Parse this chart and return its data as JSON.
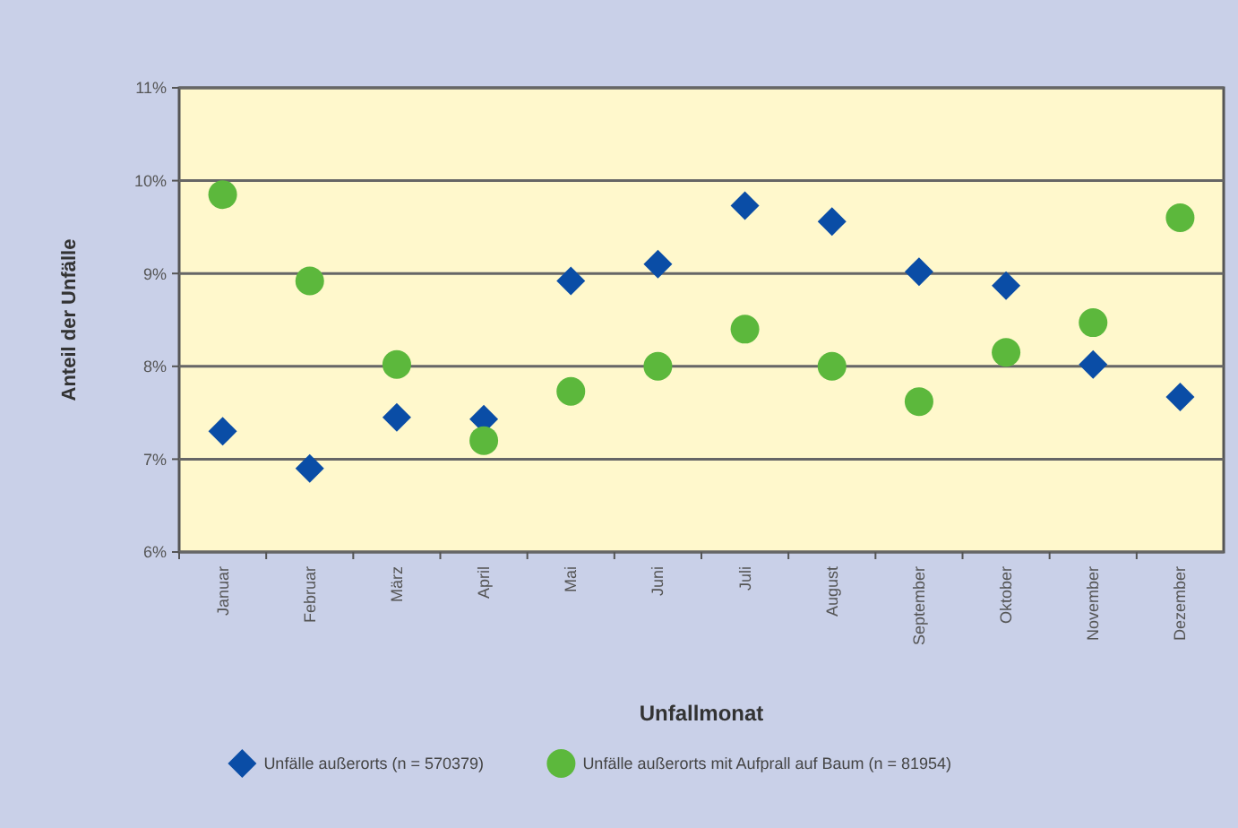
{
  "chart_data": {
    "type": "scatter",
    "xlabel": "Unfallmonat",
    "ylabel": "Anteil der Unfälle",
    "categories": [
      "Januar",
      "Februar",
      "März",
      "April",
      "Mai",
      "Juni",
      "Juli",
      "August",
      "September",
      "Oktober",
      "November",
      "Dezember"
    ],
    "series": [
      {
        "name": "Unfälle außerorts (n = 570379)",
        "color": "#0a4da6",
        "marker": "diamond",
        "values": [
          7.3,
          6.9,
          7.45,
          7.43,
          8.92,
          9.1,
          9.73,
          9.56,
          9.02,
          8.87,
          8.02,
          7.67
        ]
      },
      {
        "name": "Unfälle außerorts mit Aufprall auf Baum (n = 81954)",
        "color": "#5cb83c",
        "marker": "circle",
        "values": [
          9.85,
          8.92,
          8.02,
          7.2,
          7.73,
          8.0,
          8.4,
          8.0,
          7.62,
          8.15,
          8.47,
          9.6
        ]
      }
    ],
    "ylim": [
      6,
      11
    ],
    "yticks": [
      {
        "value": 6,
        "label": "6%"
      },
      {
        "value": 7,
        "label": "7%"
      },
      {
        "value": 8,
        "label": "8%"
      },
      {
        "value": 9,
        "label": "9%"
      },
      {
        "value": 10,
        "label": "10%"
      },
      {
        "value": 11,
        "label": "11%"
      }
    ],
    "grid": "y",
    "legend": "bottom"
  }
}
